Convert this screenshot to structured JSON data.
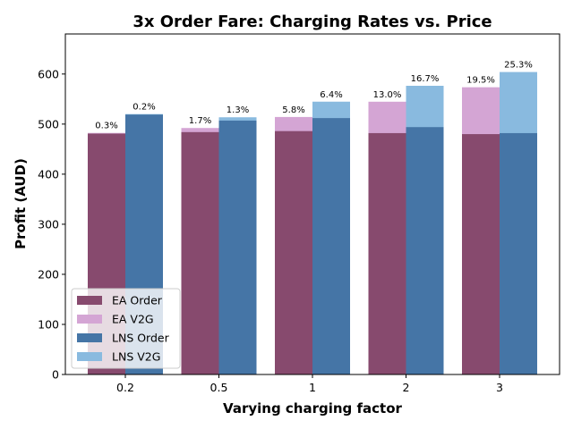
{
  "chart_data": {
    "type": "bar",
    "title": "3x Order Fare: Charging Rates vs. Price",
    "xlabel": "Varying charging factor",
    "ylabel": "Profit (AUD)",
    "categories": [
      "0.2",
      "0.5",
      "1",
      "2",
      "3"
    ],
    "ylim": [
      0,
      680
    ],
    "yticks": [
      0,
      100,
      200,
      300,
      400,
      500,
      600
    ],
    "grid": false,
    "legend_position": "lower-left",
    "groups": [
      {
        "name": "EA",
        "base": {
          "name": "EA Order",
          "color": "#874a6e",
          "values": [
            481,
            484,
            486,
            482,
            480
          ]
        },
        "total": {
          "name": "EA V2G",
          "color": "#d4a5d4",
          "values": [
            482.4,
            492.2,
            514.2,
            544.7,
            573.6
          ]
        },
        "pct_labels": [
          "0.3%",
          "1.7%",
          "5.8%",
          "13.0%",
          "19.5%"
        ]
      },
      {
        "name": "LNS",
        "base": {
          "name": "LNS Order",
          "color": "#4575a6",
          "values": [
            519,
            507,
            512,
            494,
            482
          ]
        },
        "total": {
          "name": "LNS V2G",
          "color": "#89badf",
          "values": [
            520,
            513.6,
            544.8,
            576.5,
            604
          ]
        },
        "pct_labels": [
          "0.2%",
          "1.3%",
          "6.4%",
          "16.7%",
          "25.3%"
        ]
      }
    ],
    "series": [
      {
        "name": "EA Order",
        "color": "#874a6e"
      },
      {
        "name": "EA V2G",
        "color": "#d4a5d4"
      },
      {
        "name": "LNS Order",
        "color": "#4575a6"
      },
      {
        "name": "LNS V2G",
        "color": "#89badf"
      }
    ]
  }
}
